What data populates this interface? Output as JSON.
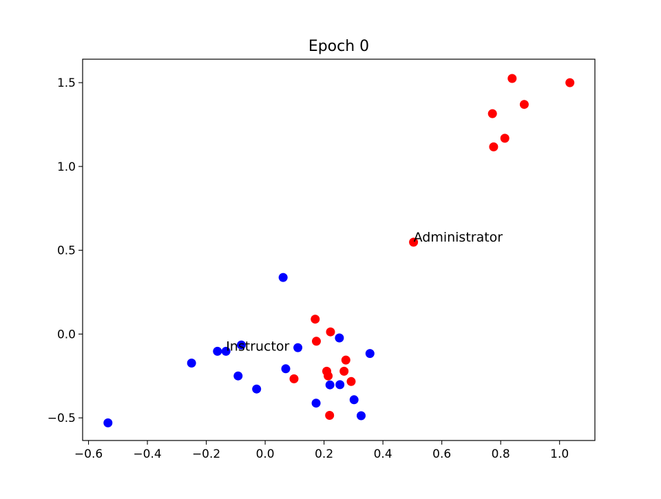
{
  "chart_data": {
    "type": "scatter",
    "title": "Epoch 0",
    "xlabel": "",
    "ylabel": "",
    "xlim": [
      -0.62,
      1.12
    ],
    "ylim": [
      -0.635,
      1.64
    ],
    "xticks": [
      -0.6,
      -0.4,
      -0.2,
      0.0,
      0.2,
      0.4,
      0.6,
      0.8,
      1.0
    ],
    "xtick_labels": [
      "−0.6",
      "−0.4",
      "−0.2",
      "0.0",
      "0.2",
      "0.4",
      "0.6",
      "0.8",
      "1.0"
    ],
    "yticks": [
      -0.5,
      0.0,
      0.5,
      1.0,
      1.5
    ],
    "ytick_labels": [
      "−0.5",
      "0.0",
      "0.5",
      "1.0",
      "1.5"
    ],
    "grid": false,
    "legend": "none",
    "series": [
      {
        "color": "#ff0000",
        "points": [
          [
            0.839,
            1.525
          ],
          [
            1.035,
            1.5
          ],
          [
            0.88,
            1.37
          ],
          [
            0.772,
            1.315
          ],
          [
            0.814,
            1.168
          ],
          [
            0.776,
            1.117
          ],
          [
            0.504,
            0.548
          ],
          [
            0.17,
            0.089
          ],
          [
            0.222,
            0.013
          ],
          [
            0.174,
            -0.043
          ],
          [
            0.274,
            -0.155
          ],
          [
            0.098,
            -0.267
          ],
          [
            0.209,
            -0.222
          ],
          [
            0.268,
            -0.222
          ],
          [
            0.214,
            -0.25
          ],
          [
            0.292,
            -0.283
          ],
          [
            0.219,
            -0.485
          ]
        ]
      },
      {
        "color": "#0000ff",
        "points": [
          [
            0.061,
            0.338
          ],
          [
            -0.081,
            -0.065
          ],
          [
            0.111,
            -0.081
          ],
          [
            -0.162,
            -0.103
          ],
          [
            -0.133,
            -0.103
          ],
          [
            -0.25,
            -0.173
          ],
          [
            0.07,
            -0.207
          ],
          [
            -0.092,
            -0.25
          ],
          [
            -0.029,
            -0.328
          ],
          [
            0.252,
            -0.023
          ],
          [
            0.356,
            -0.116
          ],
          [
            0.22,
            -0.303
          ],
          [
            0.254,
            -0.302
          ],
          [
            0.302,
            -0.392
          ],
          [
            0.173,
            -0.412
          ],
          [
            0.326,
            -0.487
          ],
          [
            -0.534,
            -0.53
          ]
        ]
      }
    ],
    "annotations": [
      {
        "text": "Administrator",
        "x": 0.504,
        "y": 0.548
      },
      {
        "text": "Instructor",
        "x": -0.133,
        "y": -0.103
      }
    ]
  }
}
